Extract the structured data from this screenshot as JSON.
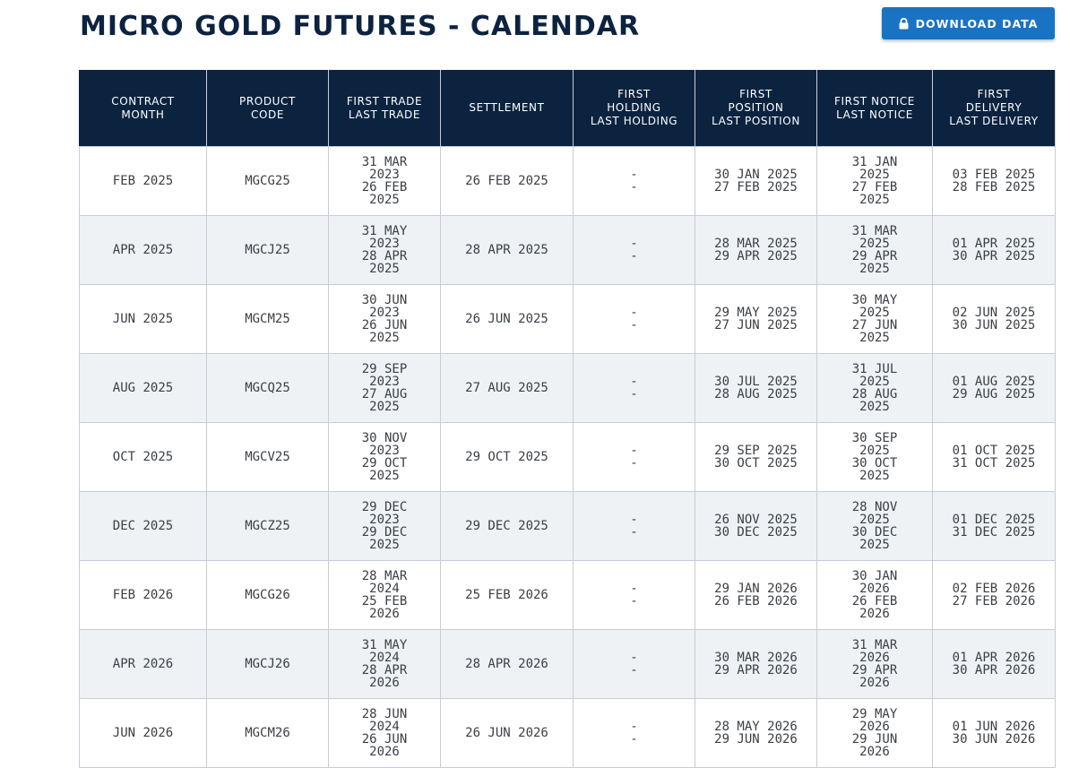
{
  "page": {
    "title": "MICRO GOLD FUTURES - CALENDAR",
    "download_label": "DOWNLOAD DATA"
  },
  "colors": {
    "header_bg": "#0c2340",
    "button_bg": "#1a73c2",
    "row_alt_bg": "#eef2f5"
  },
  "icons": {
    "download_button": "lock-icon"
  },
  "table": {
    "headers": [
      [
        "CONTRACT",
        "MONTH"
      ],
      [
        "PRODUCT",
        "CODE"
      ],
      [
        "FIRST TRADE",
        "LAST TRADE"
      ],
      [
        "SETTLEMENT"
      ],
      [
        "FIRST",
        "HOLDING",
        "LAST HOLDING"
      ],
      [
        "FIRST",
        "POSITION",
        "LAST POSITION"
      ],
      [
        "FIRST NOTICE",
        "LAST NOTICE"
      ],
      [
        "FIRST",
        "DELIVERY",
        "LAST DELIVERY"
      ]
    ],
    "rows": [
      {
        "month": "FEB 2025",
        "code": "MGCG25",
        "first_trade": "31 MAR 2023",
        "last_trade": "26 FEB 2025",
        "settlement": "26 FEB 2025",
        "first_holding": "-",
        "last_holding": "-",
        "first_position": "30 JAN 2025",
        "last_position": "27 FEB 2025",
        "first_notice": "31 JAN 2025",
        "last_notice": "27 FEB 2025",
        "first_delivery": "03 FEB 2025",
        "last_delivery": "28 FEB 2025"
      },
      {
        "month": "APR 2025",
        "code": "MGCJ25",
        "first_trade": "31 MAY 2023",
        "last_trade": "28 APR 2025",
        "settlement": "28 APR 2025",
        "first_holding": "-",
        "last_holding": "-",
        "first_position": "28 MAR 2025",
        "last_position": "29 APR 2025",
        "first_notice": "31 MAR 2025",
        "last_notice": "29 APR 2025",
        "first_delivery": "01 APR 2025",
        "last_delivery": "30 APR 2025"
      },
      {
        "month": "JUN 2025",
        "code": "MGCM25",
        "first_trade": "30 JUN 2023",
        "last_trade": "26 JUN 2025",
        "settlement": "26 JUN 2025",
        "first_holding": "-",
        "last_holding": "-",
        "first_position": "29 MAY 2025",
        "last_position": "27 JUN 2025",
        "first_notice": "30 MAY 2025",
        "last_notice": "27 JUN 2025",
        "first_delivery": "02 JUN 2025",
        "last_delivery": "30 JUN 2025"
      },
      {
        "month": "AUG 2025",
        "code": "MGCQ25",
        "first_trade": "29 SEP 2023",
        "last_trade": "27 AUG 2025",
        "settlement": "27 AUG 2025",
        "first_holding": "-",
        "last_holding": "-",
        "first_position": "30 JUL 2025",
        "last_position": "28 AUG 2025",
        "first_notice": "31 JUL 2025",
        "last_notice": "28 AUG 2025",
        "first_delivery": "01 AUG 2025",
        "last_delivery": "29 AUG 2025"
      },
      {
        "month": "OCT 2025",
        "code": "MGCV25",
        "first_trade": "30 NOV 2023",
        "last_trade": "29 OCT 2025",
        "settlement": "29 OCT 2025",
        "first_holding": "-",
        "last_holding": "-",
        "first_position": "29 SEP 2025",
        "last_position": "30 OCT 2025",
        "first_notice": "30 SEP 2025",
        "last_notice": "30 OCT 2025",
        "first_delivery": "01 OCT 2025",
        "last_delivery": "31 OCT 2025"
      },
      {
        "month": "DEC 2025",
        "code": "MGCZ25",
        "first_trade": "29 DEC 2023",
        "last_trade": "29 DEC 2025",
        "settlement": "29 DEC 2025",
        "first_holding": "-",
        "last_holding": "-",
        "first_position": "26 NOV 2025",
        "last_position": "30 DEC 2025",
        "first_notice": "28 NOV 2025",
        "last_notice": "30 DEC 2025",
        "first_delivery": "01 DEC 2025",
        "last_delivery": "31 DEC 2025"
      },
      {
        "month": "FEB 2026",
        "code": "MGCG26",
        "first_trade": "28 MAR 2024",
        "last_trade": "25 FEB 2026",
        "settlement": "25 FEB 2026",
        "first_holding": "-",
        "last_holding": "-",
        "first_position": "29 JAN 2026",
        "last_position": "26 FEB 2026",
        "first_notice": "30 JAN 2026",
        "last_notice": "26 FEB 2026",
        "first_delivery": "02 FEB 2026",
        "last_delivery": "27 FEB 2026"
      },
      {
        "month": "APR 2026",
        "code": "MGCJ26",
        "first_trade": "31 MAY 2024",
        "last_trade": "28 APR 2026",
        "settlement": "28 APR 2026",
        "first_holding": "-",
        "last_holding": "-",
        "first_position": "30 MAR 2026",
        "last_position": "29 APR 2026",
        "first_notice": "31 MAR 2026",
        "last_notice": "29 APR 2026",
        "first_delivery": "01 APR 2026",
        "last_delivery": "30 APR 2026"
      },
      {
        "month": "JUN 2026",
        "code": "MGCM26",
        "first_trade": "28 JUN 2024",
        "last_trade": "26 JUN 2026",
        "settlement": "26 JUN 2026",
        "first_holding": "-",
        "last_holding": "-",
        "first_position": "28 MAY 2026",
        "last_position": "29 JUN 2026",
        "first_notice": "29 MAY 2026",
        "last_notice": "29 JUN 2026",
        "first_delivery": "01 JUN 2026",
        "last_delivery": "30 JUN 2026"
      }
    ]
  }
}
